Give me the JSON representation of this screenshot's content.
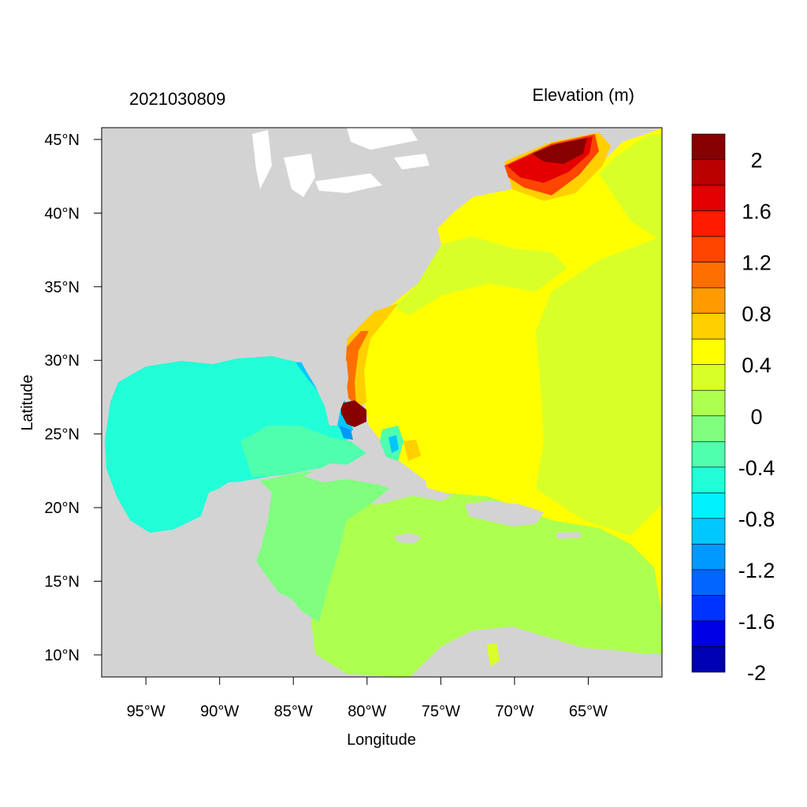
{
  "header": {
    "left_title": "2021030809",
    "right_title": "Elevation (m)"
  },
  "axes": {
    "xlabel": "Longitude",
    "ylabel": "Latitude",
    "x_ticks": [
      {
        "lon": -95,
        "label": "95°W"
      },
      {
        "lon": -90,
        "label": "90°W"
      },
      {
        "lon": -85,
        "label": "85°W"
      },
      {
        "lon": -80,
        "label": "80°W"
      },
      {
        "lon": -75,
        "label": "75°W"
      },
      {
        "lon": -70,
        "label": "70°W"
      },
      {
        "lon": -65,
        "label": "65°W"
      }
    ],
    "y_ticks": [
      {
        "lat": 45,
        "label": "45°N"
      },
      {
        "lat": 40,
        "label": "40°N"
      },
      {
        "lat": 35,
        "label": "35°N"
      },
      {
        "lat": 30,
        "label": "30°N"
      },
      {
        "lat": 25,
        "label": "25°N"
      },
      {
        "lat": 20,
        "label": "20°N"
      },
      {
        "lat": 15,
        "label": "15°N"
      },
      {
        "lat": 10,
        "label": "10°N"
      }
    ],
    "lon_range": [
      -98,
      -60
    ],
    "lat_range": [
      8.5,
      45.8
    ]
  },
  "colorbar": {
    "colors_top_to_bottom": [
      "#870000",
      "#bb0000",
      "#e40000",
      "#ff1a00",
      "#ff4500",
      "#ff6f00",
      "#ff9a00",
      "#ffcf00",
      "#ffff00",
      "#d9ff28",
      "#adff4f",
      "#80ff7f",
      "#4fffad",
      "#21ffd9",
      "#00f0ff",
      "#00c8ff",
      "#0099ff",
      "#0066ff",
      "#0033ff",
      "#0000e6",
      "#0000b4"
    ],
    "labels": [
      "2",
      "1.6",
      "1.2",
      "0.8",
      "0.4",
      "0",
      "-0.4",
      "-0.8",
      "-1.2",
      "-1.6",
      "-2"
    ]
  },
  "colors": {
    "land": "#d3d3d3",
    "lakes": "#ffffff"
  }
}
